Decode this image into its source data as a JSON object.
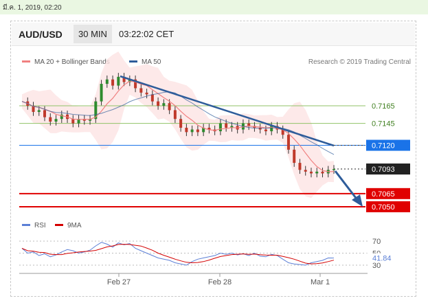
{
  "timestamp": "มี.ค. 1, 2019, 02:20",
  "header": {
    "symbol": "AUD/USD",
    "timeframe": "30 MIN",
    "time": "03:22:02 CET"
  },
  "legend": {
    "ma20": "MA 20 + Bollinger Bands",
    "ma50": "MA 50",
    "credit": "Research © 2019 Trading Central",
    "ma20_color": "#f08080",
    "ma50_color": "#2e5c9a"
  },
  "rsi_legend": {
    "rsi": "RSI",
    "ma9": "9MA",
    "rsi_color": "#5b7fd6",
    "ma9_color": "#d40000"
  },
  "chart_data": {
    "type": "candlestick",
    "x_tick_labels": [
      "Feb 27",
      "Feb 28",
      "Mar 1"
    ],
    "levels": [
      {
        "value": 0.7165,
        "label": "0.7165",
        "kind": "resistance",
        "color": "#8fc266"
      },
      {
        "value": 0.7145,
        "label": "0.7145",
        "kind": "resistance",
        "color": "#8fc266"
      },
      {
        "value": 0.712,
        "label": "0.7120",
        "kind": "pivot",
        "color": "#1a73e8"
      },
      {
        "value": 0.7093,
        "label": "0.7093",
        "kind": "last",
        "color": "#222222"
      },
      {
        "value": 0.7065,
        "label": "0.7065",
        "kind": "support",
        "color": "#e00000"
      },
      {
        "value": 0.705,
        "label": "0.7050",
        "kind": "support",
        "color": "#e00000"
      }
    ],
    "price_series": [
      0.717,
      0.7165,
      0.7158,
      0.716,
      0.7152,
      0.7147,
      0.715,
      0.7155,
      0.715,
      0.7145,
      0.715,
      0.7148,
      0.715,
      0.717,
      0.719,
      0.7195,
      0.7188,
      0.7198,
      0.7192,
      0.7195,
      0.7185,
      0.718,
      0.7178,
      0.717,
      0.7165,
      0.7168,
      0.716,
      0.715,
      0.714,
      0.7135,
      0.7138,
      0.7135,
      0.714,
      0.7138,
      0.7136,
      0.7145,
      0.714,
      0.7142,
      0.7138,
      0.7145,
      0.7142,
      0.714,
      0.7138,
      0.7136,
      0.7142,
      0.7138,
      0.7132,
      0.7115,
      0.71,
      0.7092,
      0.709,
      0.7088,
      0.709,
      0.7088,
      0.7092,
      0.7093
    ],
    "rsi": {
      "levels": [
        70,
        50,
        30
      ],
      "value": 41.84,
      "label": "41.84",
      "series": [
        58,
        50,
        52,
        46,
        49,
        44,
        47,
        52,
        56,
        54,
        50,
        52,
        55,
        62,
        68,
        65,
        60,
        67,
        64,
        66,
        58,
        54,
        50,
        46,
        42,
        40,
        38,
        34,
        32,
        30,
        36,
        40,
        42,
        44,
        46,
        50,
        48,
        50,
        47,
        49,
        46,
        50,
        45,
        44,
        48,
        46,
        40,
        34,
        32,
        31,
        30,
        34,
        36,
        38,
        42,
        41.84
      ]
    }
  }
}
